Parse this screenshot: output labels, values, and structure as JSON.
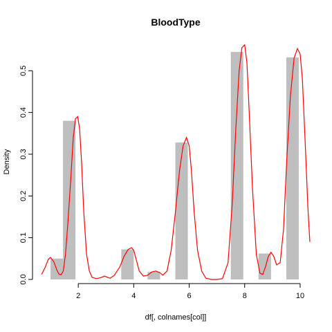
{
  "chart_data": {
    "type": "bar",
    "title": "BloodType",
    "xlabel": "df[, colnames[col]]",
    "ylabel": "Density",
    "xlim": [
      0.65,
      10.4
    ],
    "ylim": [
      0,
      0.57
    ],
    "grid": false,
    "legend": "none",
    "colors": {
      "bar": "#bebebe",
      "density": "#ff0000",
      "axis": "#000000"
    },
    "x_ticks": [
      2,
      4,
      6,
      8,
      10
    ],
    "y_ticks": [
      0.0,
      0.1,
      0.2,
      0.3,
      0.4,
      0.5
    ],
    "x_tick_labels": [
      "2",
      "4",
      "6",
      "8",
      "10"
    ],
    "y_tick_labels": [
      "0.0",
      "0.1",
      "0.2",
      "0.3",
      "0.4",
      "0.5"
    ],
    "bars": [
      {
        "x0": 1.0,
        "x1": 1.45,
        "value": 0.05
      },
      {
        "x0": 1.45,
        "x1": 1.9,
        "value": 0.38
      },
      {
        "x0": 3.55,
        "x1": 4.0,
        "value": 0.072
      },
      {
        "x0": 4.5,
        "x1": 4.95,
        "value": 0.018
      },
      {
        "x0": 5.5,
        "x1": 5.95,
        "value": 0.328
      },
      {
        "x0": 7.5,
        "x1": 7.95,
        "value": 0.545
      },
      {
        "x0": 8.5,
        "x1": 8.95,
        "value": 0.062
      },
      {
        "x0": 9.5,
        "x1": 9.95,
        "value": 0.532
      }
    ],
    "density_series": {
      "x": [
        0.68,
        0.8,
        0.92,
        1.0,
        1.12,
        1.22,
        1.3,
        1.38,
        1.46,
        1.54,
        1.62,
        1.72,
        1.82,
        1.9,
        1.98,
        2.05,
        2.12,
        2.2,
        2.3,
        2.4,
        2.5,
        2.65,
        2.8,
        2.95,
        3.05,
        3.15,
        3.3,
        3.5,
        3.65,
        3.8,
        3.92,
        4.0,
        4.08,
        4.2,
        4.35,
        4.5,
        4.65,
        4.8,
        4.95,
        5.05,
        5.2,
        5.35,
        5.5,
        5.65,
        5.78,
        5.9,
        6.0,
        6.08,
        6.18,
        6.3,
        6.45,
        6.6,
        6.8,
        7.0,
        7.2,
        7.4,
        7.55,
        7.68,
        7.8,
        7.9,
        8.0,
        8.08,
        8.15,
        8.28,
        8.42,
        8.55,
        8.65,
        8.75,
        8.85,
        8.95,
        9.05,
        9.15,
        9.28,
        9.4,
        9.52,
        9.65,
        9.78,
        9.9,
        10.0,
        10.08,
        10.18,
        10.28,
        10.35
      ],
      "y": [
        0.012,
        0.028,
        0.048,
        0.053,
        0.042,
        0.024,
        0.013,
        0.011,
        0.02,
        0.06,
        0.13,
        0.23,
        0.34,
        0.385,
        0.39,
        0.36,
        0.28,
        0.16,
        0.06,
        0.02,
        0.005,
        0.002,
        0.004,
        0.008,
        0.005,
        0.003,
        0.01,
        0.03,
        0.055,
        0.072,
        0.076,
        0.07,
        0.05,
        0.02,
        0.008,
        0.01,
        0.018,
        0.02,
        0.016,
        0.01,
        0.02,
        0.07,
        0.16,
        0.26,
        0.32,
        0.34,
        0.32,
        0.26,
        0.16,
        0.07,
        0.02,
        0.003,
        0.0,
        0.0,
        0.002,
        0.04,
        0.18,
        0.36,
        0.5,
        0.555,
        0.562,
        0.52,
        0.42,
        0.22,
        0.06,
        0.015,
        0.012,
        0.03,
        0.055,
        0.065,
        0.055,
        0.035,
        0.04,
        0.12,
        0.29,
        0.44,
        0.53,
        0.553,
        0.54,
        0.48,
        0.33,
        0.17,
        0.09
      ]
    }
  }
}
